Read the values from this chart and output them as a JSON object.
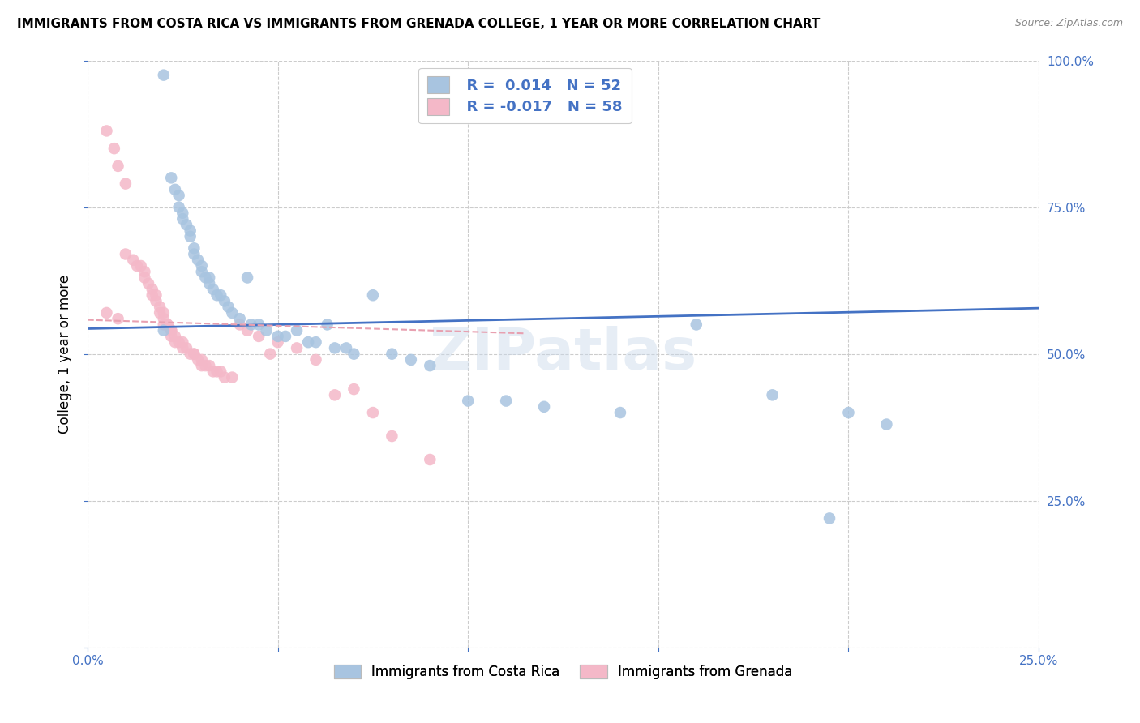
{
  "title": "IMMIGRANTS FROM COSTA RICA VS IMMIGRANTS FROM GRENADA COLLEGE, 1 YEAR OR MORE CORRELATION CHART",
  "source": "Source: ZipAtlas.com",
  "ylabel": "College, 1 year or more",
  "xlim": [
    0.0,
    0.25
  ],
  "ylim": [
    0.0,
    1.0
  ],
  "color_blue": "#a8c4e0",
  "color_pink": "#f4b8c8",
  "line_blue": "#4472c4",
  "line_pink": "#e8a0b0",
  "watermark": "ZIPatlas",
  "blue_scatter_x": [
    0.02,
    0.022,
    0.023,
    0.024,
    0.024,
    0.025,
    0.025,
    0.026,
    0.027,
    0.027,
    0.028,
    0.028,
    0.029,
    0.03,
    0.03,
    0.031,
    0.032,
    0.032,
    0.033,
    0.034,
    0.035,
    0.036,
    0.037,
    0.038,
    0.04,
    0.042,
    0.043,
    0.045,
    0.047,
    0.05,
    0.052,
    0.055,
    0.058,
    0.06,
    0.063,
    0.065,
    0.068,
    0.07,
    0.075,
    0.08,
    0.085,
    0.09,
    0.1,
    0.11,
    0.12,
    0.14,
    0.16,
    0.18,
    0.2,
    0.21,
    0.02,
    0.195
  ],
  "blue_scatter_y": [
    0.975,
    0.8,
    0.78,
    0.77,
    0.75,
    0.74,
    0.73,
    0.72,
    0.71,
    0.7,
    0.68,
    0.67,
    0.66,
    0.65,
    0.64,
    0.63,
    0.63,
    0.62,
    0.61,
    0.6,
    0.6,
    0.59,
    0.58,
    0.57,
    0.56,
    0.63,
    0.55,
    0.55,
    0.54,
    0.53,
    0.53,
    0.54,
    0.52,
    0.52,
    0.55,
    0.51,
    0.51,
    0.5,
    0.6,
    0.5,
    0.49,
    0.48,
    0.42,
    0.42,
    0.41,
    0.4,
    0.55,
    0.43,
    0.4,
    0.38,
    0.54,
    0.22
  ],
  "pink_scatter_x": [
    0.005,
    0.007,
    0.008,
    0.01,
    0.01,
    0.012,
    0.013,
    0.014,
    0.015,
    0.015,
    0.016,
    0.017,
    0.017,
    0.018,
    0.018,
    0.019,
    0.019,
    0.02,
    0.02,
    0.02,
    0.021,
    0.021,
    0.022,
    0.022,
    0.022,
    0.023,
    0.023,
    0.024,
    0.025,
    0.025,
    0.026,
    0.027,
    0.028,
    0.028,
    0.029,
    0.03,
    0.03,
    0.031,
    0.032,
    0.033,
    0.034,
    0.035,
    0.036,
    0.038,
    0.04,
    0.042,
    0.045,
    0.048,
    0.05,
    0.055,
    0.06,
    0.065,
    0.07,
    0.075,
    0.08,
    0.09,
    0.005,
    0.008
  ],
  "pink_scatter_y": [
    0.88,
    0.85,
    0.82,
    0.79,
    0.67,
    0.66,
    0.65,
    0.65,
    0.63,
    0.64,
    0.62,
    0.61,
    0.6,
    0.6,
    0.59,
    0.58,
    0.57,
    0.57,
    0.56,
    0.55,
    0.55,
    0.55,
    0.54,
    0.54,
    0.53,
    0.53,
    0.52,
    0.52,
    0.52,
    0.51,
    0.51,
    0.5,
    0.5,
    0.5,
    0.49,
    0.49,
    0.48,
    0.48,
    0.48,
    0.47,
    0.47,
    0.47,
    0.46,
    0.46,
    0.55,
    0.54,
    0.53,
    0.5,
    0.52,
    0.51,
    0.49,
    0.43,
    0.44,
    0.4,
    0.36,
    0.32,
    0.57,
    0.56
  ],
  "blue_trend_x": [
    0.0,
    0.25
  ],
  "blue_trend_y": [
    0.543,
    0.578
  ],
  "pink_trend_x": [
    0.0,
    0.115
  ],
  "pink_trend_y": [
    0.558,
    0.535
  ]
}
